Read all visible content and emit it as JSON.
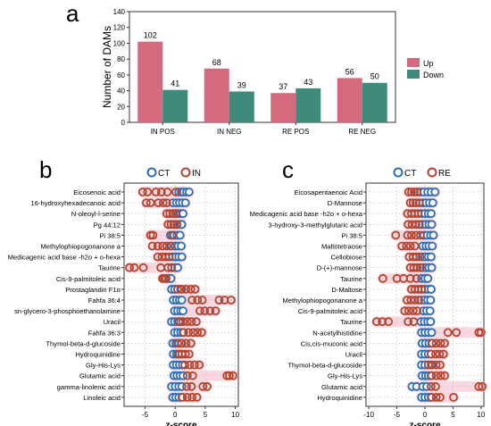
{
  "panel_letters": {
    "a": "a",
    "b": "b",
    "c": "c"
  },
  "colors": {
    "up": "#d46a7e",
    "down": "#3f8a7a",
    "ct": "#2a6db5",
    "in": "#b5432e",
    "re": "#b5432e",
    "halo": "#f2b8c6",
    "grid": "#c9c9c9",
    "axis": "#333333"
  },
  "chart_data": [
    {
      "type": "bar",
      "panel": "a",
      "ylabel": "Number of DAMs",
      "xlabel": "",
      "ylim": [
        0,
        140
      ],
      "yticks": [
        0,
        20,
        40,
        60,
        80,
        100,
        120,
        140
      ],
      "categories": [
        "IN POS",
        "IN NEG",
        "RE POS",
        "RE NEG"
      ],
      "series": [
        {
          "name": "Up",
          "values": [
            102,
            68,
            37,
            56
          ]
        },
        {
          "name": "Down",
          "values": [
            41,
            39,
            43,
            50
          ]
        }
      ],
      "legend": "right",
      "grid": false
    },
    {
      "type": "scatter",
      "panel": "b",
      "xlabel": "z-score",
      "xlim": [
        -8.5,
        10.5
      ],
      "xticks": [
        -5,
        0,
        5,
        10
      ],
      "legend_labels": [
        "CT",
        "IN"
      ],
      "legend": "top",
      "grid": true,
      "metabolites": [
        {
          "name": "Eicosenoic acid",
          "ct": [
            0.6,
            1.0,
            1.4,
            1.9,
            2.3
          ],
          "treat": [
            -5.4,
            -4.6,
            -3.2,
            -2.3,
            -1.3,
            0.1
          ]
        },
        {
          "name": "16-hydroxyhexadecanoic acid",
          "ct": [
            -0.4,
            0.2,
            0.7,
            1.2,
            1.7
          ],
          "treat": [
            -4.8,
            -4.1,
            -2.8,
            -2.0,
            -1.4
          ]
        },
        {
          "name": "N-oleoyl-l-serine",
          "ct": [
            -0.3,
            0.1,
            0.5,
            0.9,
            1.3
          ],
          "treat": [
            -1.4,
            -0.9,
            -0.4,
            0.1
          ]
        },
        {
          "name": "Pg 44:12",
          "ct": [
            -0.2,
            0.3,
            0.7,
            1.1
          ],
          "treat": [
            -1.2,
            -0.7,
            -0.2,
            0.3
          ]
        },
        {
          "name": "Pi 38:5",
          "ct": [
            -0.8,
            -0.2,
            0.3,
            0.8
          ],
          "treat": [
            -4.1,
            -3.7,
            -0.5
          ]
        },
        {
          "name": "Methylophiopogonanone a",
          "ct": [
            -0.6,
            0.0,
            0.5,
            1.0
          ],
          "treat": [
            -3.8,
            -2.9,
            -2.1,
            -1.4,
            -0.8
          ]
        },
        {
          "name": "Medicagenic acid base -h2o + o-hexa",
          "ct": [
            -0.4,
            0.1,
            0.6,
            1.1
          ],
          "treat": [
            -2.9,
            -2.2,
            -1.6,
            -1.0
          ]
        },
        {
          "name": "Taurine",
          "ct": [
            -1.2,
            -0.6,
            -0.1,
            0.4
          ],
          "treat": [
            -7.6,
            -6.8,
            -5.3,
            -2.4,
            -1.2,
            -0.6
          ]
        },
        {
          "name": "Cis-9-palmitoleic acid",
          "ct": [
            -1.5,
            -1.1,
            -0.7
          ],
          "treat": [
            -2.1,
            -1.8,
            -1.5
          ]
        },
        {
          "name": "Prostaglandin F1α",
          "ct": [
            -0.6,
            -0.1,
            0.4,
            0.9
          ],
          "treat": [
            0.4,
            1.1,
            1.8,
            2.6,
            3.3
          ]
        },
        {
          "name": "Fahfa 36:4",
          "ct": [
            -0.3,
            0.2,
            0.7,
            1.1
          ],
          "treat": [
            2.8,
            3.7,
            4.5,
            7.3,
            8.2,
            9.3
          ]
        },
        {
          "name": "sn-glycero-3-phosphoethanolamine",
          "ct": [
            -0.1,
            0.4,
            0.9,
            1.3
          ],
          "treat": [
            4.1,
            4.9,
            5.8,
            6.7
          ]
        },
        {
          "name": "Uracil",
          "ct": [
            -0.6,
            -0.1,
            0.4,
            0.9
          ],
          "treat": [
            0.6,
            1.3,
            2.0,
            2.7,
            3.5
          ]
        },
        {
          "name": "Fahfa 36:3",
          "ct": [
            -0.1,
            0.4,
            0.9,
            1.3
          ],
          "treat": [
            1.4,
            2.2,
            3.0,
            3.7,
            4.4
          ]
        },
        {
          "name": "Thymol-beta-d-glucoside",
          "ct": [
            -0.4,
            0.1,
            0.6,
            1.0
          ],
          "treat": [
            0.4,
            1.1,
            1.8,
            2.6
          ]
        },
        {
          "name": "Hydroquinidine",
          "ct": [
            -0.3,
            0.2,
            0.7,
            1.1
          ],
          "treat": [
            0.5,
            1.1,
            1.7,
            2.3
          ]
        },
        {
          "name": "Gly-His-Lys",
          "ct": [
            -0.3,
            0.2,
            0.7,
            1.2
          ],
          "treat": [
            1.6,
            2.4,
            3.2,
            4.0
          ]
        },
        {
          "name": "Glutamic acid",
          "ct": [
            -0.2,
            0.3,
            0.8,
            1.3
          ],
          "treat": [
            2.0,
            2.9,
            8.6,
            9.0,
            9.6
          ]
        },
        {
          "name": "gamma-linolenic acid",
          "ct": [
            -0.6,
            0.0,
            0.6,
            1.1
          ],
          "treat": [
            1.9,
            2.7,
            4.6,
            5.3
          ]
        },
        {
          "name": "Linoleic acid",
          "ct": [
            -0.4,
            0.1,
            0.6,
            1.1
          ],
          "treat": [
            1.2,
            2.0,
            2.8,
            3.6
          ]
        }
      ]
    },
    {
      "type": "scatter",
      "panel": "c",
      "xlabel": "z-score",
      "xlim": [
        -10.5,
        10.5
      ],
      "xticks": [
        -10,
        -5,
        0,
        5,
        10
      ],
      "legend_labels": [
        "CT",
        "RE"
      ],
      "legend": "top",
      "grid": true,
      "metabolites": [
        {
          "name": "Eicosapentaenoic Acid",
          "ct": [
            -0.8,
            -0.2,
            0.5,
            1.1,
            1.8
          ],
          "treat": [
            -2.9,
            -2.4,
            -1.9,
            -1.4
          ]
        },
        {
          "name": "D-Mannose",
          "ct": [
            -0.4,
            0.2,
            0.8,
            1.4
          ],
          "treat": [
            -2.6,
            -2.1,
            -1.6,
            -1.0
          ]
        },
        {
          "name": "Medicagenic acid base -h2o + o-hexa",
          "ct": [
            -0.6,
            0.0,
            0.6,
            1.1
          ],
          "treat": [
            -3.1,
            -2.4,
            -1.8,
            -1.2
          ]
        },
        {
          "name": "3-hydroxy-3-methylglutaric acid",
          "ct": [
            -0.5,
            0.1,
            0.7,
            1.2
          ],
          "treat": [
            -3.0,
            -2.3,
            -1.6,
            -1.0
          ]
        },
        {
          "name": "Pi 38:5",
          "ct": [
            -0.2,
            0.4,
            1.0,
            1.5
          ],
          "treat": [
            -5.2,
            -3.1,
            -2.4,
            -1.6,
            -0.8
          ]
        },
        {
          "name": "Maltotetraose",
          "ct": [
            -0.4,
            0.2,
            0.7,
            1.3
          ],
          "treat": [
            -4.1,
            -3.3,
            -2.6,
            -1.8
          ]
        },
        {
          "name": "Cellobiose",
          "ct": [
            -0.5,
            0.0,
            0.6,
            1.1
          ],
          "treat": [
            -2.8,
            -2.1,
            -1.5,
            -0.9
          ]
        },
        {
          "name": "D-(+)-mannose",
          "ct": [
            -0.4,
            0.2,
            0.7,
            1.2
          ],
          "treat": [
            -2.6,
            -2.0,
            -1.4,
            -0.8
          ]
        },
        {
          "name": "Taurine",
          "ct": [
            -0.6,
            0.0,
            0.5
          ],
          "treat": [
            -7.5,
            -5.0,
            -3.8,
            -2.6,
            -1.5
          ]
        },
        {
          "name": "D-Maltose",
          "ct": [
            -0.6,
            0.0,
            0.6,
            1.1
          ],
          "treat": [
            -2.4,
            -1.8,
            -1.2,
            -0.6
          ]
        },
        {
          "name": "Methylophiopogonanone a",
          "ct": [
            -0.7,
            -0.1,
            0.5,
            1.0
          ],
          "treat": [
            -3.2,
            -2.5,
            -1.8,
            -1.1
          ]
        },
        {
          "name": "Cis-9-palmitoleic acid",
          "ct": [
            -0.3,
            0.3,
            0.9
          ],
          "treat": [
            -3.6,
            -2.9,
            -2.1,
            -1.4
          ]
        },
        {
          "name": "Taurine",
          "ct": [
            -0.7,
            -0.1,
            0.5,
            1.0
          ],
          "treat": [
            -8.6,
            -7.6,
            -6.5,
            -3.0,
            -2.0
          ]
        },
        {
          "name": "N-acetylhistidine",
          "ct": [
            -0.6,
            0.0,
            0.6,
            1.2
          ],
          "treat": [
            4.1,
            5.6,
            9.6,
            10.0
          ]
        },
        {
          "name": "Cis,cis-muconic acid",
          "ct": [
            -0.5,
            0.1,
            0.7,
            1.2
          ],
          "treat": [
            1.3,
            2.0,
            2.8,
            3.5
          ]
        },
        {
          "name": "Uracil",
          "ct": [
            -0.6,
            0.0,
            0.6,
            1.1
          ],
          "treat": [
            1.1,
            1.9,
            2.6,
            3.3
          ]
        },
        {
          "name": "Thymol-beta-d-glucoside",
          "ct": [
            -0.6,
            0.0,
            0.6,
            1.1
          ],
          "treat": [
            0.6,
            1.3,
            2.0,
            2.7
          ]
        },
        {
          "name": "Gly-His-Lys",
          "ct": [
            -0.5,
            0.1,
            0.6,
            1.1
          ],
          "treat": [
            1.2,
            2.0,
            2.8,
            3.5
          ]
        },
        {
          "name": "Glutamic acid",
          "ct": [
            -2.3,
            -1.5,
            -0.4,
            0.3
          ],
          "treat": [
            1.1,
            1.9,
            9.6,
            10.2
          ]
        },
        {
          "name": "Hydroquinidine",
          "ct": [
            -0.6,
            0.0,
            0.6,
            1.1
          ],
          "treat": [
            1.2,
            2.0,
            2.7,
            5.1
          ]
        }
      ]
    }
  ]
}
